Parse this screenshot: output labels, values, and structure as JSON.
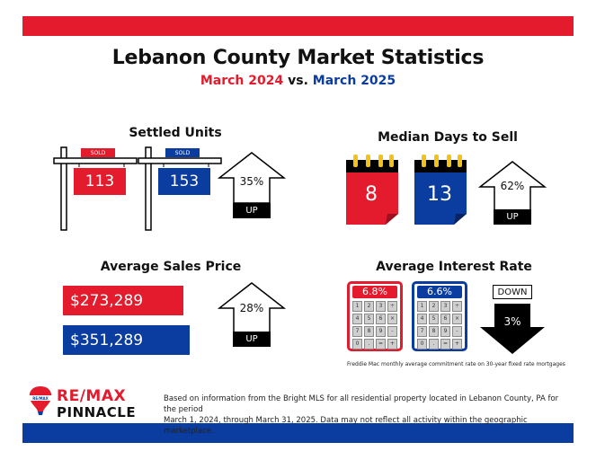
{
  "header": {
    "title": "Lebanon County Market Statistics",
    "period_a": "March 2024",
    "vs": "vs.",
    "period_b": "March 2025"
  },
  "colors": {
    "red": "#e31b2d",
    "blue": "#0b3da0",
    "black": "#000000"
  },
  "settled_units": {
    "heading": "Settled Units",
    "sign_label": "SOLD",
    "value_2024": "113",
    "value_2025": "153",
    "change_pct": "35%",
    "direction": "UP"
  },
  "median_days": {
    "heading": "Median Days to Sell",
    "value_2024": "8",
    "value_2025": "13",
    "change_pct": "62%",
    "direction": "UP"
  },
  "avg_price": {
    "heading": "Average Sales Price",
    "value_2024": "$273,289",
    "value_2025": "$351,289",
    "change_pct": "28%",
    "direction": "UP"
  },
  "interest_rate": {
    "heading": "Average Interest Rate",
    "value_2024": "6.8%",
    "value_2025": "6.6%",
    "change_pct": "3%",
    "direction": "DOWN",
    "keys": [
      "1",
      "2",
      "3",
      "÷",
      "4",
      "5",
      "6",
      "×",
      "7",
      "8",
      "9",
      "-",
      "0",
      ".",
      "=",
      "+"
    ],
    "footnote": "Freddie Mac monthly average commitment rate on 30-year fixed rate mortgages"
  },
  "footer": {
    "brand_line1": "RE/MAX",
    "brand_line2": "PINNACLE",
    "balloon_text": "RE/MAX",
    "disclaimer_line1": "Based on information from the Bright MLS for all residential property located in Lebanon County, PA for the period",
    "disclaimer_line2": "March 1, 2024, through March 31, 2025.  Data may not reflect all activity within the geographic marketplace."
  }
}
